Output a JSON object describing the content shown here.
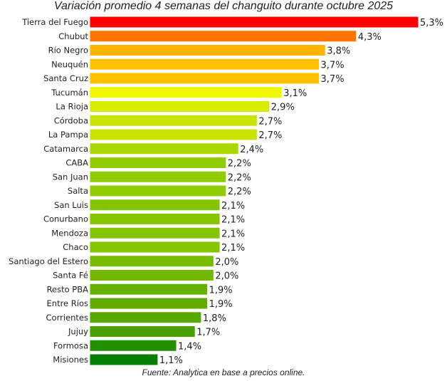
{
  "chart_data": {
    "type": "bar",
    "orientation": "horizontal",
    "title": "Variación promedio 4 semanas del changuito durante octubre 2025",
    "source": "Fuente: Analytica en base a precios online.",
    "xlim": [
      0,
      5.3
    ],
    "grid": false,
    "categories": [
      "Tierra del Fuego",
      "Chubut",
      "Río Negro",
      "Neuquén",
      "Santa Cruz",
      "Tucumán",
      "La Rioja",
      "Córdoba",
      "La Pampa",
      "Catamarca",
      "CABA",
      "San Juan",
      "Salta",
      "San Luis",
      "Conurbano",
      "Mendoza",
      "Chaco",
      "Santiago del Estero",
      "Santa Fé",
      "Resto PBA",
      "Entre Ríos",
      "Corrientes",
      "Jujuy",
      "Formosa",
      "Misiones"
    ],
    "values": [
      5.3,
      4.3,
      3.8,
      3.7,
      3.7,
      3.1,
      2.9,
      2.7,
      2.7,
      2.4,
      2.2,
      2.2,
      2.2,
      2.1,
      2.1,
      2.1,
      2.1,
      2.0,
      2.0,
      1.9,
      1.9,
      1.8,
      1.7,
      1.4,
      1.1
    ],
    "labels": [
      "5,3%",
      "4,3%",
      "3,8%",
      "3,7%",
      "3,7%",
      "3,1%",
      "2,9%",
      "2,7%",
      "2,7%",
      "2,4%",
      "2,2%",
      "2,2%",
      "2,2%",
      "2,1%",
      "2,1%",
      "2,1%",
      "2,1%",
      "2,0%",
      "2,0%",
      "1,9%",
      "1,9%",
      "1,8%",
      "1,7%",
      "1,4%",
      "1,1%"
    ],
    "colors": [
      "#ff0000",
      "#ff7300",
      "#ffb400",
      "#ffc000",
      "#ffc000",
      "#f0f800",
      "#d8ec00",
      "#c8e400",
      "#c8e400",
      "#a8d800",
      "#90cc00",
      "#90cc00",
      "#90cc00",
      "#84c400",
      "#84c400",
      "#84c400",
      "#84c400",
      "#78bc00",
      "#72b800",
      "#66b000",
      "#60ac00",
      "#58a800",
      "#4aa000",
      "#229000",
      "#007f00"
    ]
  }
}
